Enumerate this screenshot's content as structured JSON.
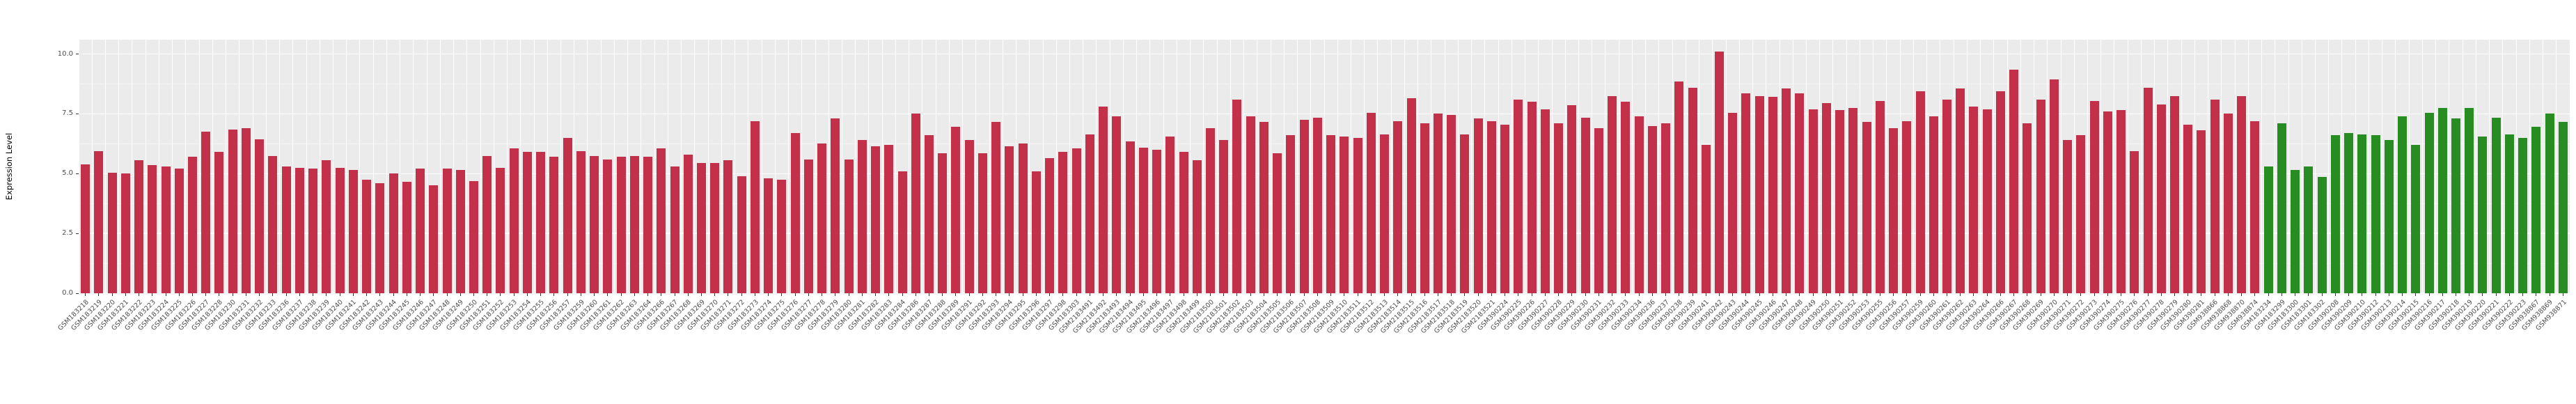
{
  "chart_data": {
    "type": "bar",
    "title": "",
    "xlabel": "",
    "ylabel": "Expression Level",
    "ylim": [
      0,
      10.6
    ],
    "yticks": [
      0,
      2.5,
      5,
      7.5,
      10
    ],
    "ytick_labels": [
      "0.0",
      "2.5",
      "5.0",
      "7.5",
      "10.0"
    ],
    "grid": true,
    "legend_position": "none",
    "panel_color": "#EBEBEB",
    "grid_color": "#FFFFFF",
    "bar_group_colors": {
      "group1": "#C2304A",
      "group2": "#278C21"
    },
    "group2_start_index": 163,
    "categories": [
      "GSM183218",
      "GSM183219",
      "GSM183220",
      "GSM183221",
      "GSM183222",
      "GSM183223",
      "GSM183224",
      "GSM183225",
      "GSM183226",
      "GSM183227",
      "GSM183228",
      "GSM183230",
      "GSM183231",
      "GSM183232",
      "GSM183233",
      "GSM183236",
      "GSM183237",
      "GSM183238",
      "GSM183239",
      "GSM183240",
      "GSM183241",
      "GSM183242",
      "GSM183243",
      "GSM183244",
      "GSM183245",
      "GSM183246",
      "GSM183247",
      "GSM183248",
      "GSM183249",
      "GSM183250",
      "GSM183251",
      "GSM183252",
      "GSM183253",
      "GSM183254",
      "GSM183255",
      "GSM183256",
      "GSM183257",
      "GSM183259",
      "GSM183260",
      "GSM183261",
      "GSM183262",
      "GSM183263",
      "GSM183264",
      "GSM183266",
      "GSM183267",
      "GSM183268",
      "GSM183269",
      "GSM183270",
      "GSM183271",
      "GSM183272",
      "GSM183273",
      "GSM183274",
      "GSM183275",
      "GSM183276",
      "GSM183277",
      "GSM183278",
      "GSM183279",
      "GSM183280",
      "GSM183281",
      "GSM183282",
      "GSM183283",
      "GSM183284",
      "GSM183286",
      "GSM183287",
      "GSM183288",
      "GSM183289",
      "GSM183291",
      "GSM183292",
      "GSM183293",
      "GSM183294",
      "GSM183295",
      "GSM183296",
      "GSM183297",
      "GSM183298",
      "GSM183303",
      "GSM2183491",
      "GSM2183492",
      "GSM2183493",
      "GSM2183494",
      "GSM2183495",
      "GSM2183496",
      "GSM2183497",
      "GSM2183498",
      "GSM2183499",
      "GSM2183500",
      "GSM2183501",
      "GSM2183502",
      "GSM2183503",
      "GSM2183504",
      "GSM2183505",
      "GSM2183506",
      "GSM2183507",
      "GSM2183508",
      "GSM2183509",
      "GSM2183510",
      "GSM2183511",
      "GSM2183512",
      "GSM2183513",
      "GSM2183514",
      "GSM2183515",
      "GSM2183516",
      "GSM2183517",
      "GSM2183518",
      "GSM2183519",
      "GSM2183520",
      "GSM2183521",
      "GSM390224",
      "GSM390225",
      "GSM390226",
      "GSM390227",
      "GSM390228",
      "GSM390229",
      "GSM390230",
      "GSM390231",
      "GSM390232",
      "GSM390233",
      "GSM390234",
      "GSM390236",
      "GSM390237",
      "GSM390238",
      "GSM390239",
      "GSM390241",
      "GSM390242",
      "GSM390243",
      "GSM390244",
      "GSM390245",
      "GSM390246",
      "GSM390247",
      "GSM390248",
      "GSM390249",
      "GSM390250",
      "GSM390251",
      "GSM390252",
      "GSM390253",
      "GSM390255",
      "GSM390256",
      "GSM390257",
      "GSM390259",
      "GSM390260",
      "GSM390261",
      "GSM390262",
      "GSM390263",
      "GSM390264",
      "GSM390266",
      "GSM390267",
      "GSM390268",
      "GSM390269",
      "GSM390270",
      "GSM390271",
      "GSM390272",
      "GSM390273",
      "GSM390274",
      "GSM390275",
      "GSM390276",
      "GSM390277",
      "GSM390278",
      "GSM390279",
      "GSM390280",
      "GSM390281",
      "GSM938866",
      "GSM938868",
      "GSM938870",
      "GSM938874",
      "GSM183234",
      "GSM183299",
      "GSM183300",
      "GSM183301",
      "GSM183302",
      "GSM390208",
      "GSM390209",
      "GSM390210",
      "GSM390212",
      "GSM390213",
      "GSM390214",
      "GSM390215",
      "GSM390216",
      "GSM390217",
      "GSM390218",
      "GSM390219",
      "GSM390220",
      "GSM390221",
      "GSM390222",
      "GSM390223",
      "GSM938867",
      "GSM938869",
      "GSM938871"
    ],
    "values": [
      5.4,
      5.95,
      5.05,
      5.0,
      5.55,
      5.35,
      5.3,
      5.2,
      5.7,
      6.75,
      5.9,
      6.85,
      6.9,
      6.45,
      5.75,
      5.3,
      5.25,
      5.2,
      5.55,
      5.25,
      5.15,
      4.75,
      4.6,
      5.0,
      4.65,
      5.2,
      4.5,
      5.2,
      5.15,
      4.7,
      5.75,
      5.25,
      6.05,
      5.9,
      5.9,
      5.7,
      6.5,
      5.95,
      5.75,
      5.6,
      5.7,
      5.75,
      5.7,
      6.05,
      5.3,
      5.8,
      5.45,
      5.45,
      5.55,
      4.9,
      7.2,
      4.8,
      4.75,
      6.7,
      5.6,
      6.25,
      7.3,
      5.6,
      6.4,
      6.15,
      6.2,
      5.1,
      7.5,
      6.6,
      5.85,
      6.95,
      6.4,
      5.85,
      7.15,
      6.15,
      6.25,
      5.1,
      5.65,
      5.9,
      6.05,
      6.65,
      7.8,
      7.4,
      6.35,
      6.1,
      6.0,
      6.55,
      5.9,
      5.55,
      6.9,
      6.4,
      8.1,
      7.4,
      7.15,
      5.85,
      6.6,
      7.25,
      7.35,
      6.6,
      6.55,
      6.5,
      7.55,
      6.65,
      7.2,
      8.15,
      7.1,
      7.5,
      7.45,
      6.65,
      7.3,
      7.2,
      7.05,
      8.1,
      8.0,
      7.7,
      7.1,
      7.85,
      7.35,
      6.9,
      8.25,
      8.0,
      7.4,
      7.0,
      7.1,
      8.85,
      8.6,
      6.2,
      10.1,
      7.55,
      8.35,
      8.25,
      8.2,
      8.55,
      8.35,
      7.7,
      7.95,
      7.65,
      7.75,
      7.15,
      8.05,
      6.9,
      7.2,
      8.45,
      7.4,
      8.1,
      8.55,
      7.8,
      7.7,
      8.45,
      9.35,
      7.1,
      8.1,
      8.95,
      6.4,
      6.6,
      8.05,
      7.6,
      7.65,
      5.95,
      8.6,
      7.9,
      8.25,
      7.05,
      6.8,
      8.1,
      7.5,
      8.25,
      7.2,
      5.3,
      7.1,
      5.15,
      5.3,
      4.85,
      6.6,
      6.7,
      6.65,
      6.6,
      6.4,
      7.4,
      6.2,
      7.55,
      7.75,
      7.3,
      7.75,
      6.55,
      7.35,
      6.65,
      6.5,
      6.95,
      7.5,
      7.15
    ]
  }
}
